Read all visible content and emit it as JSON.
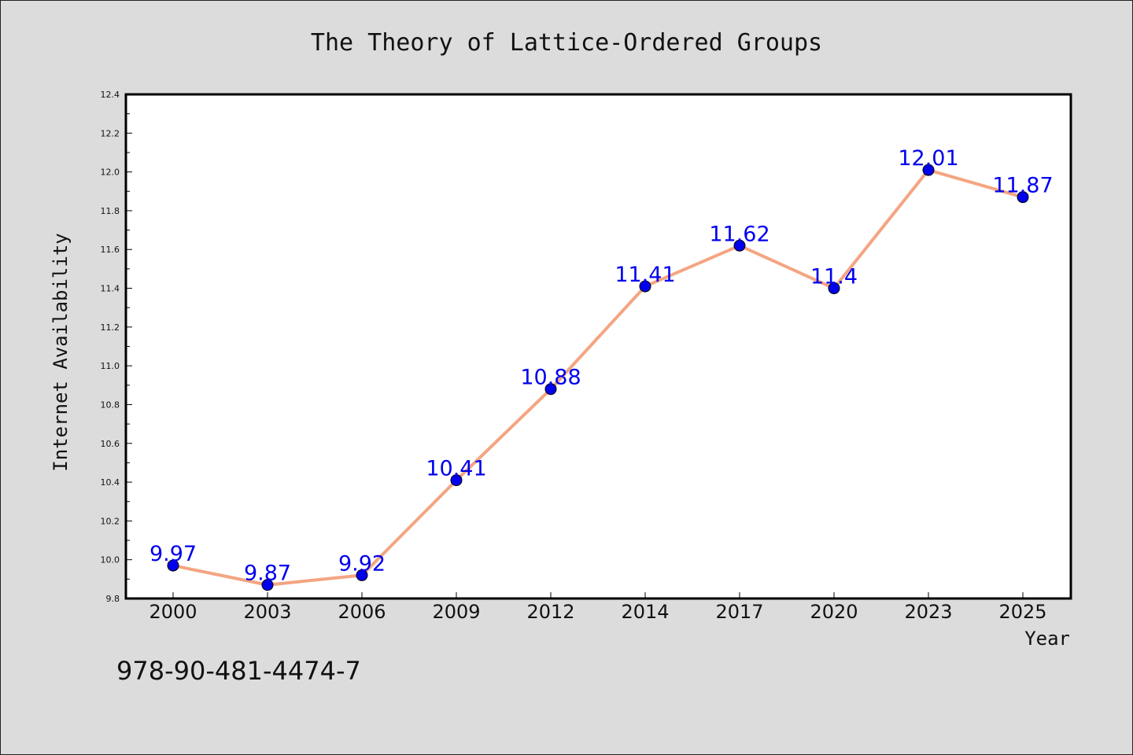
{
  "isbn": "978-90-481-4474-7",
  "colors": {
    "background": "#dcdcdc",
    "plot_background": "#ffffff",
    "line": "#f4a582",
    "marker": "#0000ee",
    "data_label": "#0000ee"
  },
  "chart_data": {
    "type": "line",
    "title": "The Theory of Lattice-Ordered Groups",
    "xlabel": "Year",
    "ylabel": "Internet Availability",
    "categories": [
      "2000",
      "2003",
      "2006",
      "2009",
      "2012",
      "2014",
      "2017",
      "2020",
      "2023",
      "2025"
    ],
    "series": [
      {
        "values": [
          9.97,
          9.87,
          9.92,
          10.41,
          10.88,
          11.41,
          11.62,
          11.4,
          12.01,
          11.87
        ],
        "labels": [
          "9.97",
          "9.87",
          "9.92",
          "10.41",
          "10.88",
          "11.41",
          "11.62",
          "11.4",
          "12.01",
          "11.87"
        ]
      }
    ],
    "ylim": [
      9.8,
      12.4
    ],
    "yticks": [
      "9.8",
      "10.0",
      "10.2",
      "10.4",
      "10.6",
      "10.8",
      "11.0",
      "11.2",
      "11.4",
      "11.6",
      "11.8",
      "12.0",
      "12.2",
      "12.4"
    ],
    "grid": false,
    "legend": "none"
  }
}
